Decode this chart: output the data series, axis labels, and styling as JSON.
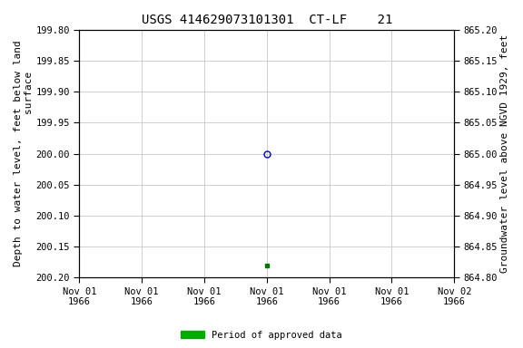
{
  "title": "USGS 414629073101301  CT-LF    21",
  "ylabel_left": "Depth to water level, feet below land\nsurface",
  "ylabel_right": "Groundwater level above NGVD 1929, feet",
  "ylim_left": [
    199.8,
    200.2
  ],
  "ylim_right": [
    864.8,
    865.2
  ],
  "yticks_left": [
    199.8,
    199.85,
    199.9,
    199.95,
    200.0,
    200.05,
    200.1,
    200.15,
    200.2
  ],
  "yticks_right": [
    864.8,
    864.85,
    864.9,
    864.95,
    865.0,
    865.05,
    865.1,
    865.15,
    865.2
  ],
  "point_blue_x": 3.0,
  "point_blue_y": 200.0,
  "point_green_x": 3.0,
  "point_green_y": 200.18,
  "xlim": [
    0,
    6
  ],
  "xtick_positions": [
    0,
    1,
    2,
    3,
    4,
    5,
    6
  ],
  "xtick_labels": [
    "Nov 01\n1966",
    "Nov 01\n1966",
    "Nov 01\n1966",
    "Nov 01\n1966",
    "Nov 01\n1966",
    "Nov 01\n1966",
    "Nov 02\n1966"
  ],
  "background_color": "#ffffff",
  "plot_bg_color": "#ffffff",
  "grid_color": "#c8c8c8",
  "legend_label": "Period of approved data",
  "legend_color": "#00aa00",
  "blue_marker_color": "#0000cc",
  "green_marker_color": "#007700",
  "title_fontsize": 10,
  "axis_label_fontsize": 8,
  "tick_fontsize": 7.5
}
